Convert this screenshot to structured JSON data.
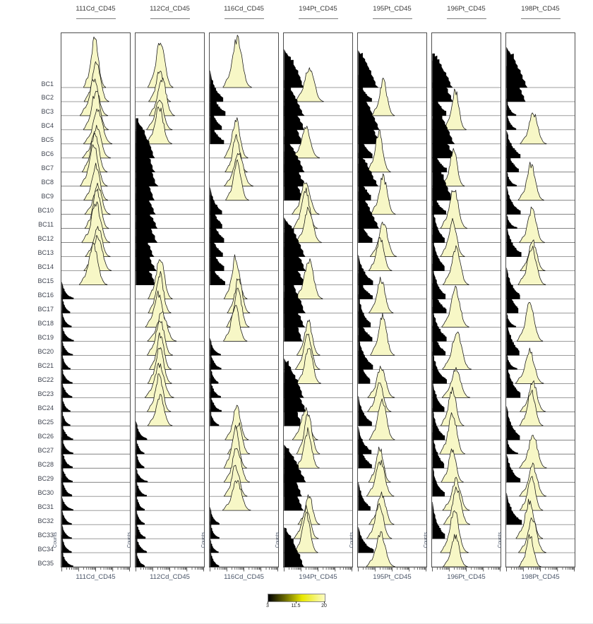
{
  "figure": {
    "y_axis_title": "Counts",
    "column_titles": [
      "111Cd_CD45",
      "112Cd_CD45",
      "116Cd_CD45",
      "194Pt_CD45",
      "195Pt_CD45",
      "196Pt_CD45",
      "198Pt_CD45"
    ],
    "x_axis_titles": [
      "111Cd_CD45",
      "112Cd_CD45",
      "116Cd_CD45",
      "194Pt_CD45",
      "195Pt_CD45",
      "196Pt_CD45",
      "198Pt_CD45"
    ],
    "row_labels": [
      "BC1",
      "BC2",
      "BC3",
      "BC4",
      "BC5",
      "BC6",
      "BC7",
      "BC8",
      "BC9",
      "BC10",
      "BC11",
      "BC12",
      "BC13",
      "BC14",
      "BC15",
      "BC16",
      "BC17",
      "BC18",
      "BC19",
      "BC20",
      "BC21",
      "BC22",
      "BC23",
      "BC24",
      "BC25",
      "BC26",
      "BC27",
      "BC28",
      "BC29",
      "BC30",
      "BC31",
      "BC32",
      "BC33",
      "BC34",
      "BC35"
    ]
  },
  "chart_data": {
    "type": "ridgeline-histogram-grid",
    "description": "Debarcoding quality plot: per-barcode (BC1-BC35) intensity histograms for 7 barcoding channels. Each barcode is positive (pale-yellow high-intensity peak) in exactly 3 of 7 channels (lexicographic 3-of-7 scheme); negative populations are black low-intensity distributions at the left of each panel.",
    "channels": [
      "111Cd_CD45",
      "112Cd_CD45",
      "116Cd_CD45",
      "194Pt_CD45",
      "195Pt_CD45",
      "196Pt_CD45",
      "198Pt_CD45"
    ],
    "barcodes": [
      "BC1",
      "BC2",
      "BC3",
      "BC4",
      "BC5",
      "BC6",
      "BC7",
      "BC8",
      "BC9",
      "BC10",
      "BC11",
      "BC12",
      "BC13",
      "BC14",
      "BC15",
      "BC16",
      "BC17",
      "BC18",
      "BC19",
      "BC20",
      "BC21",
      "BC22",
      "BC23",
      "BC24",
      "BC25",
      "BC26",
      "BC27",
      "BC28",
      "BC29",
      "BC30",
      "BC31",
      "BC32",
      "BC33",
      "BC34",
      "BC35"
    ],
    "positive_rows_by_channel": {
      "111Cd_CD45": [
        1,
        2,
        3,
        4,
        5,
        6,
        7,
        8,
        9,
        10,
        11,
        12,
        13,
        14,
        15
      ],
      "112Cd_CD45": [
        1,
        2,
        3,
        4,
        5,
        16,
        17,
        18,
        19,
        20,
        21,
        22,
        23,
        24,
        25
      ],
      "116Cd_CD45": [
        1,
        6,
        7,
        8,
        9,
        16,
        17,
        18,
        19,
        26,
        27,
        28,
        29,
        30,
        31
      ],
      "194Pt_CD45": [
        2,
        6,
        10,
        11,
        12,
        16,
        20,
        21,
        22,
        26,
        27,
        28,
        32,
        33,
        34
      ],
      "195Pt_CD45": [
        3,
        7,
        10,
        13,
        14,
        17,
        20,
        23,
        24,
        26,
        29,
        30,
        32,
        33,
        35
      ],
      "196Pt_CD45": [
        4,
        8,
        11,
        13,
        15,
        18,
        21,
        23,
        25,
        27,
        29,
        31,
        32,
        34,
        35
      ],
      "198Pt_CD45": [
        5,
        9,
        12,
        14,
        15,
        19,
        22,
        24,
        25,
        28,
        30,
        31,
        33,
        34,
        35
      ]
    },
    "positive_center_frac": {
      "111Cd_CD45": 0.5,
      "112Cd_CD45": 0.36,
      "116Cd_CD45": 0.4,
      "194Pt_CD45": 0.34,
      "195Pt_CD45": 0.34,
      "196Pt_CD45": 0.33,
      "198Pt_CD45": 0.37
    },
    "negative_profile_by_channel": {
      "111Cd_CD45": {
        "default": "narrow",
        "broad_rows": [],
        "medium_rows": []
      },
      "112Cd_CD45": {
        "default": "narrow",
        "broad_rows": [
          6,
          7,
          8,
          9,
          10,
          11,
          12,
          13,
          14,
          15
        ],
        "medium_rows": []
      },
      "116Cd_CD45": {
        "default": "narrow",
        "broad_rows": [],
        "medium_rows": [
          2,
          3,
          4,
          5,
          10,
          11,
          12,
          13,
          14,
          15
        ]
      },
      "194Pt_CD45": {
        "default": "broad",
        "broad_rows": [],
        "medium_rows": []
      },
      "195Pt_CD45": {
        "default": "medium",
        "broad_rows": [
          1,
          4,
          5,
          8,
          11
        ],
        "medium_rows": []
      },
      "196Pt_CD45": {
        "default": "medium",
        "broad_rows": [
          1,
          2,
          5,
          6,
          9
        ],
        "medium_rows": []
      },
      "198Pt_CD45": {
        "default": "narrow",
        "broad_rows": [
          1,
          2
        ],
        "medium_rows": [
          6,
          7,
          10,
          13,
          16,
          17,
          20,
          23,
          26,
          29,
          32
        ]
      }
    },
    "x_scale": "log-style minor/major ticks, 4 decades, no numeric tick labels",
    "colorbar": {
      "min": 3,
      "mid": 11.5,
      "max": 20,
      "tick_labels": [
        "3",
        "11.5",
        "20"
      ],
      "gradient": [
        "#000000",
        "#6b6b00",
        "#e8e800",
        "#fcfcc2"
      ],
      "gradient_stops_pct": [
        0,
        30,
        60,
        100
      ]
    }
  },
  "colors": {
    "positive_fill": "#f7f7c6",
    "negative_fill": "#000000",
    "ridge_outline": "#141414",
    "baseline": "#3a3a3a",
    "panel_border": "#4f4f4f",
    "header_text": "#3b3b3b",
    "header_underline": "#7e7e7e",
    "row_label_text": "#3f4450",
    "axis_title_text": "#4a5568",
    "tick_color": "#1a1a1a"
  }
}
